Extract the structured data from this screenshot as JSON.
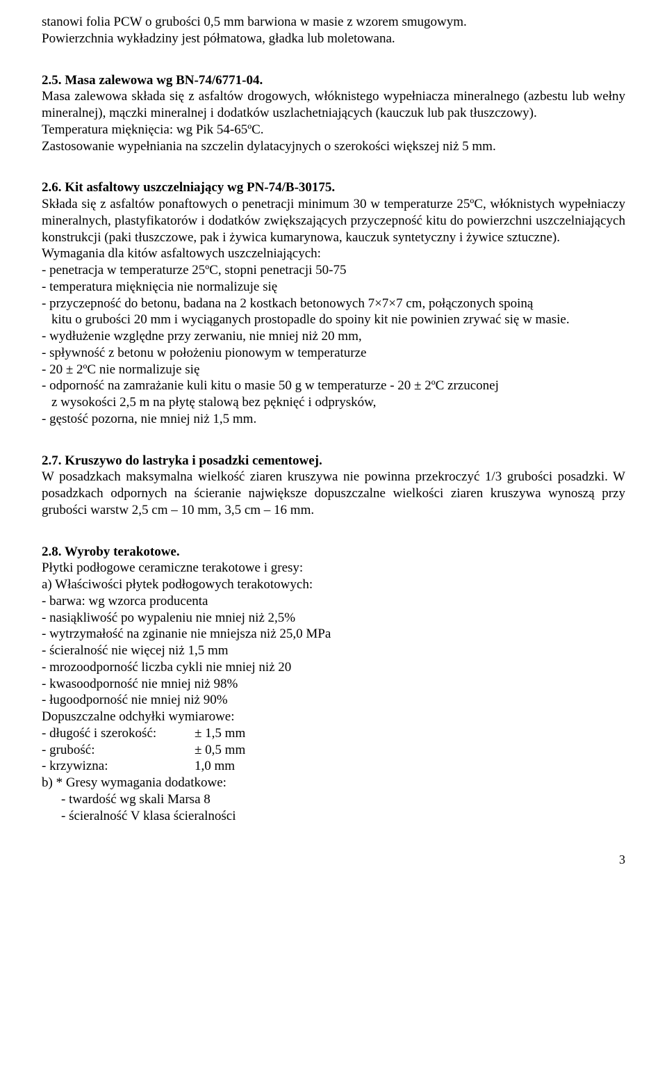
{
  "intro": {
    "line1": "stanowi folia PCW o grubości 0,5 mm barwiona w masie z wzorem smugowym.",
    "line2": "Powierzchnia wykładziny jest półmatowa, gładka lub moletowana."
  },
  "s25": {
    "heading": "2.5. Masa zalewowa wg BN-74/6771-04.",
    "p1": "Masa zalewowa składa się z asfaltów drogowych, włóknistego wypełniacza mineralnego (azbestu lub wełny mineralnej), mączki mineralnej i dodatków uszlachetniających (kauczuk lub pak tłuszczowy).",
    "p2": "Temperatura mięknięcia: wg Pik 54-65ºC.",
    "p3": "Zastosowanie wypełniania na szczelin dylatacyjnych o szerokości większej niż 5 mm."
  },
  "s26": {
    "heading": "2.6. Kit asfaltowy uszczelniający wg PN-74/B-30175.",
    "p1": "Składa się z asfaltów ponaftowych o penetracji minimum 30 w temperaturze 25ºC, włóknistych wypełniaczy mineralnych, plastyfikatorów i dodatków zwiększających przyczepność kitu do powierzchni uszczelniających konstrukcji (paki tłuszczowe, pak i żywica kumarynowa, kauczuk syntetyczny i żywice sztuczne).",
    "p2": "Wymagania dla kitów asfaltowych uszczelniających:",
    "b1": "- penetracja w temperaturze 25ºC, stopni penetracji 50-75",
    "b2": "- temperatura mięknięcia nie normalizuje się",
    "b3a": "- przyczepność do betonu, badana na 2 kostkach betonowych 7×7×7 cm, połączonych spoiną",
    "b3b": "kitu o grubości 20 mm i wyciąganych prostopadle do spoiny kit nie powinien zrywać się w masie.",
    "b4": "- wydłużenie względne przy zerwaniu, nie mniej niż 20 mm,",
    "b5": "- spływność z betonu w położeniu pionowym w temperaturze",
    "b6": "- 20 ± 2ºC nie normalizuje się",
    "b7a": "- odporność na zamrażanie kuli kitu o masie 50 g w temperaturze - 20 ± 2ºC zrzuconej",
    "b7b": "z wysokości 2,5 m na płytę stalową bez pęknięć i odprysków,",
    "b8": "- gęstość pozorna, nie mniej niż 1,5 mm."
  },
  "s27": {
    "heading": "2.7. Kruszywo do lastryka i posadzki cementowej.",
    "p1": "W posadzkach maksymalna wielkość ziaren kruszywa nie powinna przekroczyć 1/3 grubości posadzki. W posadzkach odpornych na ścieranie największe dopuszczalne wielkości ziaren kruszywa wynoszą przy grubości warstw 2,5 cm – 10 mm, 3,5 cm – 16 mm."
  },
  "s28": {
    "heading": "2.8. Wyroby terakotowe.",
    "p1": "Płytki podłogowe ceramiczne terakotowe i gresy:",
    "a_label": "a) Właściwości płytek podłogowych terakotowych:",
    "a_items": [
      "- barwa: wg wzorca producenta",
      "- nasiąkliwość po wypaleniu nie mniej niż 2,5%",
      "- wytrzymałość na zginanie nie mniejsza niż 25,0 MPa",
      "- ścieralność nie więcej niż 1,5 mm",
      "- mrozoodporność liczba cykli nie mniej niż 20",
      "- kwasoodporność nie mniej niż 98%",
      "- ługoodporność nie mniej niż 90%"
    ],
    "dop_label": "Dopuszczalne odchyłki wymiarowe:",
    "dop": [
      {
        "label": "- długość i szerokość:",
        "val": "± 1,5 mm"
      },
      {
        "label": "- grubość:",
        "val": "± 0,5 mm"
      },
      {
        "label": "- krzywizna:",
        "val": "1,0 mm"
      }
    ],
    "b_label": "b) * Gresy wymagania dodatkowe:",
    "b_items": [
      "- twardość wg skali Marsa 8",
      "- ścieralność      V klasa ścieralności"
    ]
  },
  "pagenum": "3"
}
